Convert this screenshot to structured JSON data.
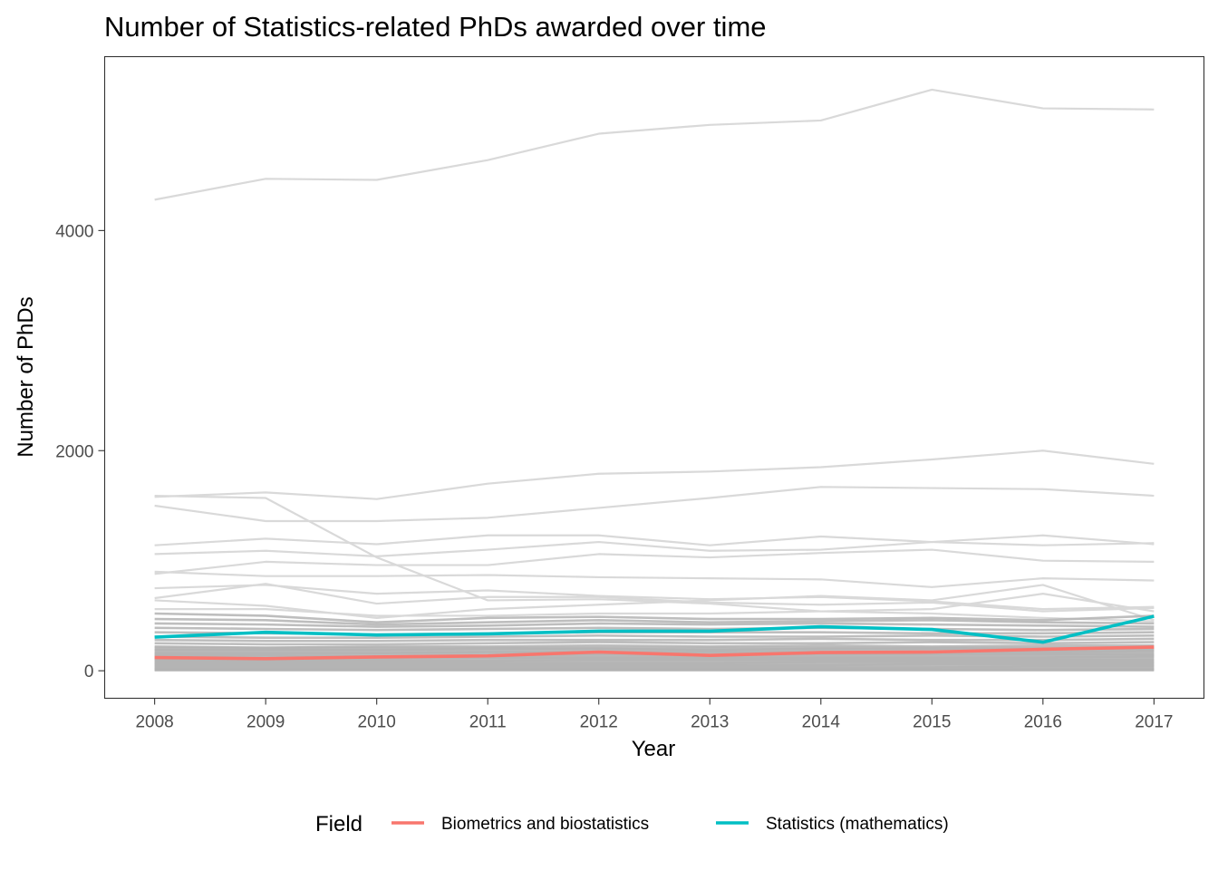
{
  "chart_data": {
    "type": "line",
    "title": "Number of Statistics-related PhDs awarded over time",
    "xlabel": "Year",
    "ylabel": "Number of PhDs",
    "x": [
      2008,
      2009,
      2010,
      2011,
      2012,
      2013,
      2014,
      2015,
      2016,
      2017
    ],
    "x_ticks": [
      "2008",
      "2009",
      "2010",
      "2011",
      "2012",
      "2013",
      "2014",
      "2015",
      "2016",
      "2017"
    ],
    "y_ticks": [
      "0",
      "2000",
      "4000"
    ],
    "y_tick_values": [
      0,
      2000,
      4000
    ],
    "ylim": [
      -250,
      5580
    ],
    "xlim": [
      2007.55,
      2017.45
    ],
    "grid": false,
    "legend": {
      "title": "Field",
      "position": "bottom",
      "entries": [
        {
          "label": "Biometrics and biostatistics",
          "color": "#F8766D"
        },
        {
          "label": "Statistics (mathematics)",
          "color": "#00BFC4"
        }
      ]
    },
    "series": [
      {
        "name": "Biometrics and biostatistics",
        "color": "#F8766D",
        "values": [
          120,
          110,
          125,
          135,
          170,
          140,
          165,
          170,
          195,
          215
        ]
      },
      {
        "name": "Statistics (mathematics)",
        "color": "#00BFC4",
        "values": [
          305,
          350,
          325,
          335,
          360,
          360,
          400,
          375,
          260,
          495
        ]
      }
    ],
    "background_series": [
      [
        4280,
        4470,
        4460,
        4640,
        4880,
        4960,
        5000,
        5280,
        5110,
        5100
      ],
      [
        1580,
        1620,
        1560,
        1700,
        1790,
        1810,
        1850,
        1920,
        2000,
        1880
      ],
      [
        1500,
        1360,
        1360,
        1390,
        1480,
        1570,
        1670,
        1660,
        1650,
        1590
      ],
      [
        1590,
        1570,
        1030,
        640,
        650,
        610,
        540,
        520,
        480,
        450
      ],
      [
        1140,
        1200,
        1150,
        1230,
        1230,
        1140,
        1220,
        1170,
        1140,
        1160
      ],
      [
        1060,
        1090,
        1040,
        1100,
        1170,
        1090,
        1100,
        1170,
        1230,
        1150
      ],
      [
        880,
        990,
        960,
        960,
        1060,
        1030,
        1070,
        1100,
        1000,
        990
      ],
      [
        900,
        860,
        860,
        870,
        850,
        840,
        830,
        760,
        840,
        820
      ],
      [
        750,
        780,
        700,
        730,
        680,
        650,
        670,
        630,
        560,
        580
      ],
      [
        660,
        790,
        610,
        670,
        670,
        620,
        600,
        620,
        540,
        570
      ],
      [
        640,
        590,
        480,
        560,
        600,
        640,
        680,
        640,
        780,
        460
      ],
      [
        560,
        560,
        500,
        500,
        520,
        520,
        540,
        560,
        700,
        540
      ],
      [
        520,
        500,
        440,
        480,
        490,
        470,
        470,
        480,
        460,
        500
      ],
      [
        470,
        460,
        420,
        440,
        460,
        440,
        450,
        460,
        440,
        430
      ],
      [
        430,
        420,
        400,
        410,
        430,
        420,
        430,
        420,
        410,
        400
      ],
      [
        390,
        380,
        370,
        380,
        390,
        380,
        390,
        380,
        370,
        380
      ],
      [
        350,
        340,
        330,
        340,
        350,
        350,
        350,
        340,
        340,
        350
      ],
      [
        310,
        300,
        300,
        310,
        320,
        310,
        310,
        320,
        310,
        320
      ],
      [
        280,
        270,
        270,
        280,
        280,
        280,
        290,
        280,
        280,
        290
      ],
      [
        250,
        240,
        240,
        250,
        260,
        250,
        250,
        260,
        250,
        260
      ],
      [
        220,
        210,
        220,
        220,
        230,
        220,
        230,
        220,
        230,
        230
      ],
      [
        190,
        190,
        190,
        200,
        200,
        190,
        200,
        200,
        200,
        200
      ],
      [
        160,
        160,
        160,
        170,
        170,
        170,
        170,
        170,
        170,
        180
      ],
      [
        140,
        140,
        130,
        140,
        150,
        140,
        150,
        150,
        150,
        150
      ],
      [
        110,
        110,
        110,
        120,
        120,
        120,
        120,
        120,
        120,
        130
      ],
      [
        90,
        90,
        90,
        90,
        100,
        100,
        100,
        100,
        100,
        100
      ],
      [
        70,
        70,
        70,
        70,
        70,
        70,
        80,
        80,
        80,
        80
      ],
      [
        50,
        50,
        50,
        50,
        50,
        50,
        50,
        60,
        60,
        60
      ],
      [
        30,
        30,
        30,
        30,
        30,
        30,
        30,
        30,
        40,
        40
      ],
      [
        15,
        15,
        15,
        15,
        15,
        15,
        15,
        15,
        15,
        15
      ],
      [
        5,
        5,
        5,
        5,
        5,
        5,
        5,
        5,
        5,
        5
      ]
    ],
    "colors": {
      "background_line": "#b3b3b3",
      "background_line_light": "#d9d9d9",
      "panel_border": "#333333",
      "tick_text": "#4d4d4d"
    }
  }
}
